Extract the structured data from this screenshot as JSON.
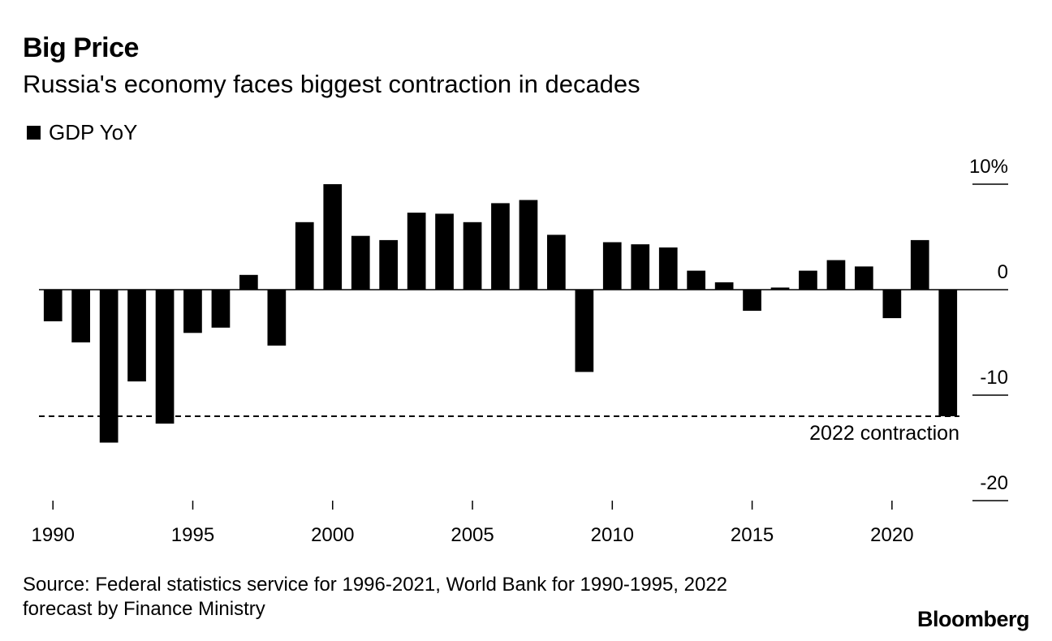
{
  "header": {
    "title": "Big Price",
    "subtitle": "Russia's economy faces biggest contraction in decades"
  },
  "legend": {
    "label": "GDP YoY",
    "color": "#000000"
  },
  "footer": {
    "source_line1": "Source: Federal statistics service for 1996-2021, World Bank for 1990-1995, 2022",
    "source_line2": "forecast by Finance Ministry",
    "brand": "Bloomberg"
  },
  "chart_data": {
    "type": "bar",
    "title": "Big Price",
    "subtitle": "Russia's economy faces biggest contraction in decades",
    "series": [
      {
        "name": "GDP YoY",
        "color": "#000000",
        "categories": [
          1990,
          1991,
          1992,
          1993,
          1994,
          1995,
          1996,
          1997,
          1998,
          1999,
          2000,
          2001,
          2002,
          2003,
          2004,
          2005,
          2006,
          2007,
          2008,
          2009,
          2010,
          2011,
          2012,
          2013,
          2014,
          2015,
          2016,
          2017,
          2018,
          2019,
          2020,
          2021,
          2022
        ],
        "values": [
          -3.0,
          -5.0,
          -14.5,
          -8.7,
          -12.7,
          -4.1,
          -3.6,
          1.4,
          -5.3,
          6.4,
          10.0,
          5.1,
          4.7,
          7.3,
          7.2,
          6.4,
          8.2,
          8.5,
          5.2,
          -7.8,
          4.5,
          4.3,
          4.0,
          1.8,
          0.7,
          -2.0,
          0.2,
          1.8,
          2.8,
          2.2,
          -2.7,
          4.7,
          -12.0
        ]
      }
    ],
    "x_ticks": [
      "1990",
      "1995",
      "2000",
      "2005",
      "2010",
      "2015",
      "2020"
    ],
    "x_tick_values": [
      1990,
      1995,
      2000,
      2005,
      2010,
      2015,
      2020
    ],
    "y_ticks": [
      10,
      0,
      -10,
      -20
    ],
    "y_tick_labels": [
      "10%",
      "0",
      "-10",
      "-20"
    ],
    "ylim": [
      -20,
      10
    ],
    "reference_line": {
      "value": -12.0,
      "label": "2022 contraction",
      "style": "dashed"
    },
    "xlabel": "",
    "ylabel": "",
    "legend_position": "top-left"
  }
}
